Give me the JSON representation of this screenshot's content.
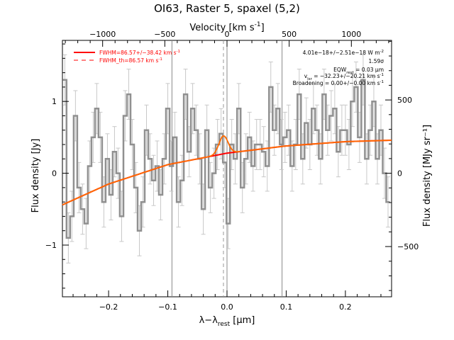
{
  "chart_data": {
    "type": "line",
    "title": "OI63, Raster 5, spaxel (5,2)",
    "top_axis": {
      "label_main": "Velocity [km s",
      "label_sup": "-1",
      "label_tail": "]",
      "ticks": [
        -1000,
        -500,
        0,
        500,
        1000
      ],
      "tick_labels": [
        "−1000",
        "−500",
        "0",
        "500",
        "1000"
      ],
      "km_s_per_um": 4760
    },
    "bottom_axis": {
      "label_main": "λ−λ",
      "label_sub": "rest",
      "label_tail": " [μm]",
      "ticks": [
        -0.2,
        -0.1,
        0.0,
        0.1,
        0.2
      ],
      "tick_labels": [
        "−0.2",
        "−0.1",
        "0.0",
        "0.1",
        "0.2"
      ],
      "xlim": [
        -0.278,
        0.278
      ]
    },
    "left_axis": {
      "label": "Flux density [Jy]",
      "ticks": [
        -1,
        0,
        1
      ],
      "tick_labels": [
        "−1",
        "0",
        "1"
      ],
      "ylim": [
        -1.72,
        1.85
      ]
    },
    "right_axis": {
      "label": "Flux density [MJy sr⁻¹]",
      "ticks": [
        -500,
        0,
        500
      ],
      "tick_labels": [
        "−500",
        "0",
        "500"
      ],
      "mjy_per_jy": 490
    },
    "vertical_lines_x": [
      -0.093,
      0.0,
      0.093
    ],
    "dashed_line_x": -0.006,
    "legend": {
      "position": "top-left",
      "entries": [
        {
          "label": "FWHM=86.57+/−38.42 km s",
          "sup": "-1",
          "style": "solid",
          "color": "#ff0000"
        },
        {
          "label": "FWHM_th=86.57 km s",
          "sup": "-1",
          "style": "dashed",
          "color": "#ff0000"
        }
      ]
    },
    "annotations": [
      {
        "text": "4.01e−18+/−2.51e−18 W m",
        "sup": "-2"
      },
      {
        "text": "1.59σ"
      },
      {
        "text": "EQW",
        "sub": "rest",
        "tail": " = 0.03 μm"
      },
      {
        "text": "v",
        "sub": "lsr",
        "tail": " = −32.23+/−20.21 km s",
        "sup": "-1"
      },
      {
        "text": "Broadening = 0.00+/−0.00 km s",
        "sup": "-1"
      }
    ],
    "series": [
      {
        "kind": "step",
        "color": "#909090",
        "x": [
          -0.274,
          -0.268,
          -0.262,
          -0.256,
          -0.25,
          -0.244,
          -0.238,
          -0.232,
          -0.226,
          -0.22,
          -0.214,
          -0.208,
          -0.202,
          -0.196,
          -0.19,
          -0.184,
          -0.178,
          -0.172,
          -0.166,
          -0.16,
          -0.154,
          -0.148,
          -0.142,
          -0.136,
          -0.13,
          -0.124,
          -0.118,
          -0.112,
          -0.106,
          -0.1,
          -0.094,
          -0.088,
          -0.082,
          -0.076,
          -0.07,
          -0.064,
          -0.058,
          -0.052,
          -0.046,
          -0.04,
          -0.034,
          -0.028,
          -0.022,
          -0.016,
          -0.01,
          -0.004,
          0.002,
          0.008,
          0.014,
          0.02,
          0.026,
          0.032,
          0.038,
          0.044,
          0.05,
          0.056,
          0.062,
          0.068,
          0.074,
          0.08,
          0.086,
          0.092,
          0.098,
          0.104,
          0.11,
          0.116,
          0.122,
          0.128,
          0.134,
          0.14,
          0.146,
          0.152,
          0.158,
          0.164,
          0.17,
          0.176,
          0.182,
          0.188,
          0.194,
          0.2,
          0.206,
          0.212,
          0.218,
          0.224,
          0.23,
          0.236,
          0.242,
          0.248,
          0.254,
          0.26,
          0.266,
          0.272
        ],
        "y": [
          1.3,
          -0.9,
          -0.6,
          0.8,
          -0.2,
          -0.5,
          -0.7,
          0.1,
          0.5,
          0.9,
          0.5,
          -0.4,
          0.2,
          -0.3,
          0.3,
          0.0,
          -0.6,
          0.8,
          1.1,
          0.4,
          -0.2,
          -0.8,
          -0.4,
          0.6,
          0.2,
          -0.1,
          0.1,
          -0.3,
          0.2,
          0.9,
          0.1,
          0.5,
          -0.4,
          -0.1,
          1.1,
          0.3,
          0.9,
          0.6,
          0.2,
          -0.5,
          0.6,
          -0.2,
          0.0,
          0.4,
          0.55,
          0.15,
          -0.7,
          0.4,
          0.2,
          0.9,
          -0.2,
          0.2,
          0.5,
          0.1,
          0.4,
          0.4,
          0.3,
          0.1,
          1.2,
          0.6,
          0.9,
          0.4,
          0.5,
          0.6,
          0.1,
          0.4,
          1.1,
          0.2,
          0.7,
          0.4,
          0.9,
          0.6,
          0.2,
          1.1,
          0.6,
          0.8,
          0.9,
          0.3,
          0.6,
          0.6,
          0.4,
          1.0,
          1.2,
          0.5,
          1.3,
          0.2,
          0.6,
          1.0,
          0.2,
          0.6,
          0.0,
          -0.4
        ],
        "err": 0.35
      },
      {
        "kind": "fit",
        "name": "",
        "color": "#ff0000",
        "continuum": {
          "x": [
            -0.278,
            -0.2,
            -0.1,
            0.0,
            0.1,
            0.2,
            0.278
          ],
          "y": [
            -0.44,
            -0.15,
            0.12,
            0.28,
            0.38,
            0.44,
            0.46
          ]
        },
        "gaussian": {
          "center": -0.006,
          "fwhm": 0.018,
          "amplitude": 0.25
        }
      }
    ]
  }
}
